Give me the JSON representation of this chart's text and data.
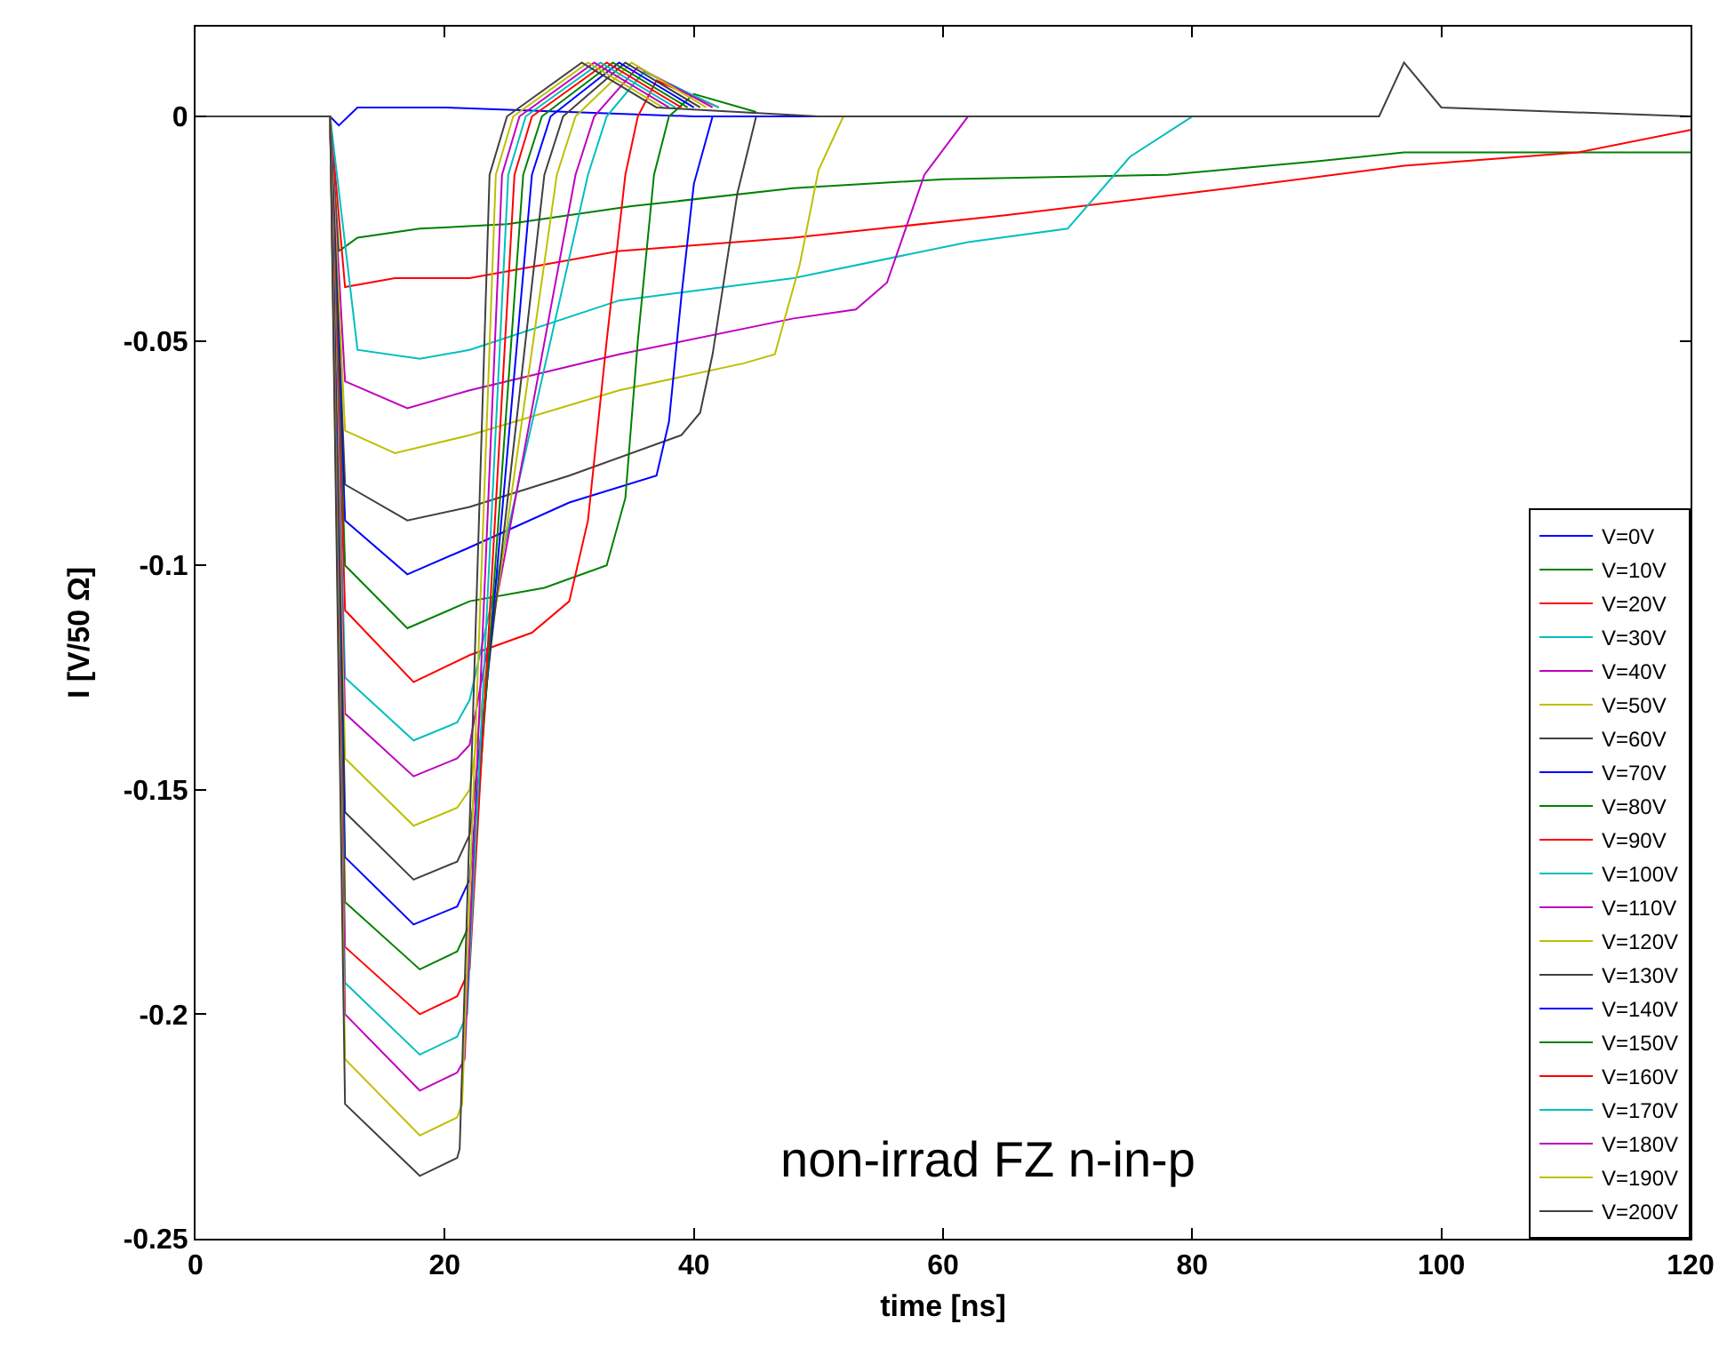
{
  "chart_data": {
    "type": "line",
    "xlabel": "time [ns]",
    "ylabel": "I [V/50 Ω]",
    "annotations": [
      "non-irrad FZ n-in-p"
    ],
    "xlim": [
      0,
      120
    ],
    "xticks": [
      0,
      20,
      40,
      60,
      80,
      100,
      120
    ],
    "ylim": [
      -0.25,
      0.02
    ],
    "yticks": [
      -0.25,
      -0.2,
      -0.15,
      -0.1,
      -0.05,
      0
    ],
    "legend": "bottom right",
    "series": [
      {
        "name": "V=0V",
        "color": "#0000ff",
        "x": [
          0,
          10.8,
          11.5,
          13,
          20,
          30,
          40,
          60
        ],
        "values": [
          0,
          0,
          -0.002,
          0.002,
          0.002,
          0.001,
          0,
          0
        ]
      },
      {
        "name": "V=10V",
        "color": "#008000",
        "x": [
          0,
          10.8,
          11.5,
          13,
          18,
          25,
          35,
          48,
          60,
          78,
          90,
          97,
          110,
          120
        ],
        "values": [
          0,
          0,
          -0.03,
          -0.027,
          -0.025,
          -0.024,
          -0.02,
          -0.016,
          -0.014,
          -0.013,
          -0.01,
          -0.008,
          -0.008,
          -0.008
        ]
      },
      {
        "name": "V=20V",
        "color": "#ff0000",
        "x": [
          0,
          10.8,
          12,
          16,
          22,
          34,
          48,
          65,
          83,
          97,
          111,
          120
        ],
        "values": [
          0,
          0,
          -0.038,
          -0.036,
          -0.036,
          -0.03,
          -0.027,
          -0.022,
          -0.016,
          -0.011,
          -0.008,
          -0.003
        ]
      },
      {
        "name": "V=30V",
        "color": "#00bfbf",
        "x": [
          0,
          10.8,
          13,
          18,
          22,
          34,
          48,
          62,
          70,
          75,
          80
        ],
        "values": [
          0,
          0,
          -0.052,
          -0.054,
          -0.052,
          -0.041,
          -0.036,
          -0.028,
          -0.025,
          -0.009,
          0
        ]
      },
      {
        "name": "V=40V",
        "color": "#bf00bf",
        "x": [
          0,
          10.8,
          12,
          17,
          22,
          34,
          48,
          53,
          55.5,
          58.5,
          62
        ],
        "values": [
          0,
          0,
          -0.059,
          -0.065,
          -0.061,
          -0.053,
          -0.045,
          -0.043,
          -0.037,
          -0.013,
          0
        ]
      },
      {
        "name": "V=50V",
        "color": "#bfbf00",
        "x": [
          0,
          10.8,
          12,
          16,
          22,
          34,
          44,
          46.5,
          48.5,
          50,
          52
        ],
        "values": [
          0,
          0,
          -0.07,
          -0.075,
          -0.071,
          -0.061,
          -0.055,
          -0.053,
          -0.033,
          -0.012,
          0
        ]
      },
      {
        "name": "V=60V",
        "color": "#404040",
        "x": [
          0,
          10.8,
          12,
          17,
          22,
          30,
          39,
          40.5,
          41.5,
          43.5,
          45
        ],
        "values": [
          0,
          0,
          -0.082,
          -0.09,
          -0.087,
          -0.08,
          -0.071,
          -0.066,
          -0.053,
          -0.017,
          0
        ]
      },
      {
        "name": "V=70V",
        "color": "#0000ff",
        "x": [
          0,
          10.8,
          12,
          17,
          22,
          30,
          37,
          38,
          39,
          40,
          41.5
        ],
        "values": [
          0,
          0,
          -0.09,
          -0.102,
          -0.096,
          -0.086,
          -0.08,
          -0.068,
          -0.04,
          -0.015,
          0
        ]
      },
      {
        "name": "V=80V",
        "color": "#008000",
        "x": [
          0,
          10.8,
          12,
          17,
          22,
          28,
          33,
          34.5,
          35.5,
          36.8,
          38,
          40,
          45
        ],
        "values": [
          0,
          0,
          -0.1,
          -0.114,
          -0.108,
          -0.105,
          -0.1,
          -0.085,
          -0.05,
          -0.013,
          0,
          0.005,
          0.001
        ]
      },
      {
        "name": "V=90V",
        "color": "#ff0000",
        "x": [
          0,
          10.8,
          12,
          17.5,
          22,
          27,
          30,
          31.5,
          33,
          34.5,
          35.5,
          37,
          42
        ],
        "values": [
          0,
          0,
          -0.11,
          -0.126,
          -0.12,
          -0.115,
          -0.108,
          -0.09,
          -0.05,
          -0.013,
          0,
          0.008,
          0.002
        ]
      },
      {
        "name": "V=100V",
        "color": "#00bfbf",
        "x": [
          0,
          10.8,
          12,
          17.5,
          21,
          22,
          31.5,
          33,
          36,
          42
        ],
        "values": [
          0,
          0,
          -0.125,
          -0.139,
          -0.135,
          -0.13,
          -0.013,
          0,
          0.01,
          0.002
        ]
      },
      {
        "name": "V=110V",
        "color": "#bf00bf",
        "x": [
          0,
          10.8,
          12,
          17.5,
          21,
          22,
          30.5,
          32,
          35.5,
          41.5
        ],
        "values": [
          0,
          0,
          -0.133,
          -0.147,
          -0.143,
          -0.14,
          -0.013,
          0,
          0.011,
          0.002
        ]
      },
      {
        "name": "V=120V",
        "color": "#bfbf00",
        "x": [
          0,
          10.8,
          12,
          17.5,
          21,
          22,
          29,
          30.5,
          35,
          41
        ],
        "values": [
          0,
          0,
          -0.143,
          -0.158,
          -0.154,
          -0.15,
          -0.013,
          0,
          0.012,
          0.002
        ]
      },
      {
        "name": "V=130V",
        "color": "#404040",
        "x": [
          0,
          10.8,
          12,
          17.5,
          21,
          22,
          28,
          29.5,
          34.5,
          40.5
        ],
        "values": [
          0,
          0,
          -0.155,
          -0.17,
          -0.166,
          -0.16,
          -0.013,
          0,
          0.012,
          0.002
        ]
      },
      {
        "name": "V=140V",
        "color": "#0000ff",
        "x": [
          0,
          10.8,
          12,
          17.5,
          21,
          22,
          27,
          28.5,
          34,
          40
        ],
        "values": [
          0,
          0,
          -0.165,
          -0.18,
          -0.176,
          -0.17,
          -0.013,
          0,
          0.012,
          0.002
        ]
      },
      {
        "name": "V=150V",
        "color": "#008000",
        "x": [
          0,
          10.8,
          12,
          18,
          21,
          22,
          26.3,
          27.8,
          33.5,
          39.5
        ],
        "values": [
          0,
          0,
          -0.175,
          -0.19,
          -0.186,
          -0.18,
          -0.013,
          0,
          0.012,
          0.002
        ]
      },
      {
        "name": "V=160V",
        "color": "#ff0000",
        "x": [
          0,
          10.8,
          12,
          18,
          21,
          22,
          25.6,
          27,
          33,
          39
        ],
        "values": [
          0,
          0,
          -0.185,
          -0.2,
          -0.196,
          -0.19,
          -0.013,
          0,
          0.012,
          0.002
        ]
      },
      {
        "name": "V=170V",
        "color": "#00bfbf",
        "x": [
          0,
          10.8,
          12,
          18,
          21,
          21.8,
          25.1,
          26.5,
          32.5,
          38.5
        ],
        "values": [
          0,
          0,
          -0.193,
          -0.209,
          -0.205,
          -0.2,
          -0.013,
          0,
          0.012,
          0.002
        ]
      },
      {
        "name": "V=180V",
        "color": "#bf00bf",
        "x": [
          0,
          10.8,
          12,
          18,
          21,
          21.6,
          24.6,
          26,
          32,
          38
        ],
        "values": [
          0,
          0,
          -0.2,
          -0.217,
          -0.213,
          -0.21,
          -0.013,
          0,
          0.012,
          0.002
        ]
      },
      {
        "name": "V=190V",
        "color": "#bfbf00",
        "x": [
          0,
          10.8,
          12,
          18,
          21,
          21.4,
          24.1,
          25.5,
          31.5,
          37.5
        ],
        "values": [
          0,
          0,
          -0.21,
          -0.227,
          -0.223,
          -0.22,
          -0.013,
          0,
          0.012,
          0.002
        ]
      },
      {
        "name": "V=200V",
        "color": "#404040",
        "x": [
          0,
          10.8,
          12,
          18,
          21,
          21.2,
          23.6,
          25,
          31,
          37,
          50,
          95,
          97,
          100,
          120
        ],
        "values": [
          0,
          0,
          -0.22,
          -0.236,
          -0.232,
          -0.23,
          -0.013,
          0,
          0.012,
          0.002,
          0,
          0,
          0.012,
          0.002,
          0
        ]
      }
    ]
  }
}
